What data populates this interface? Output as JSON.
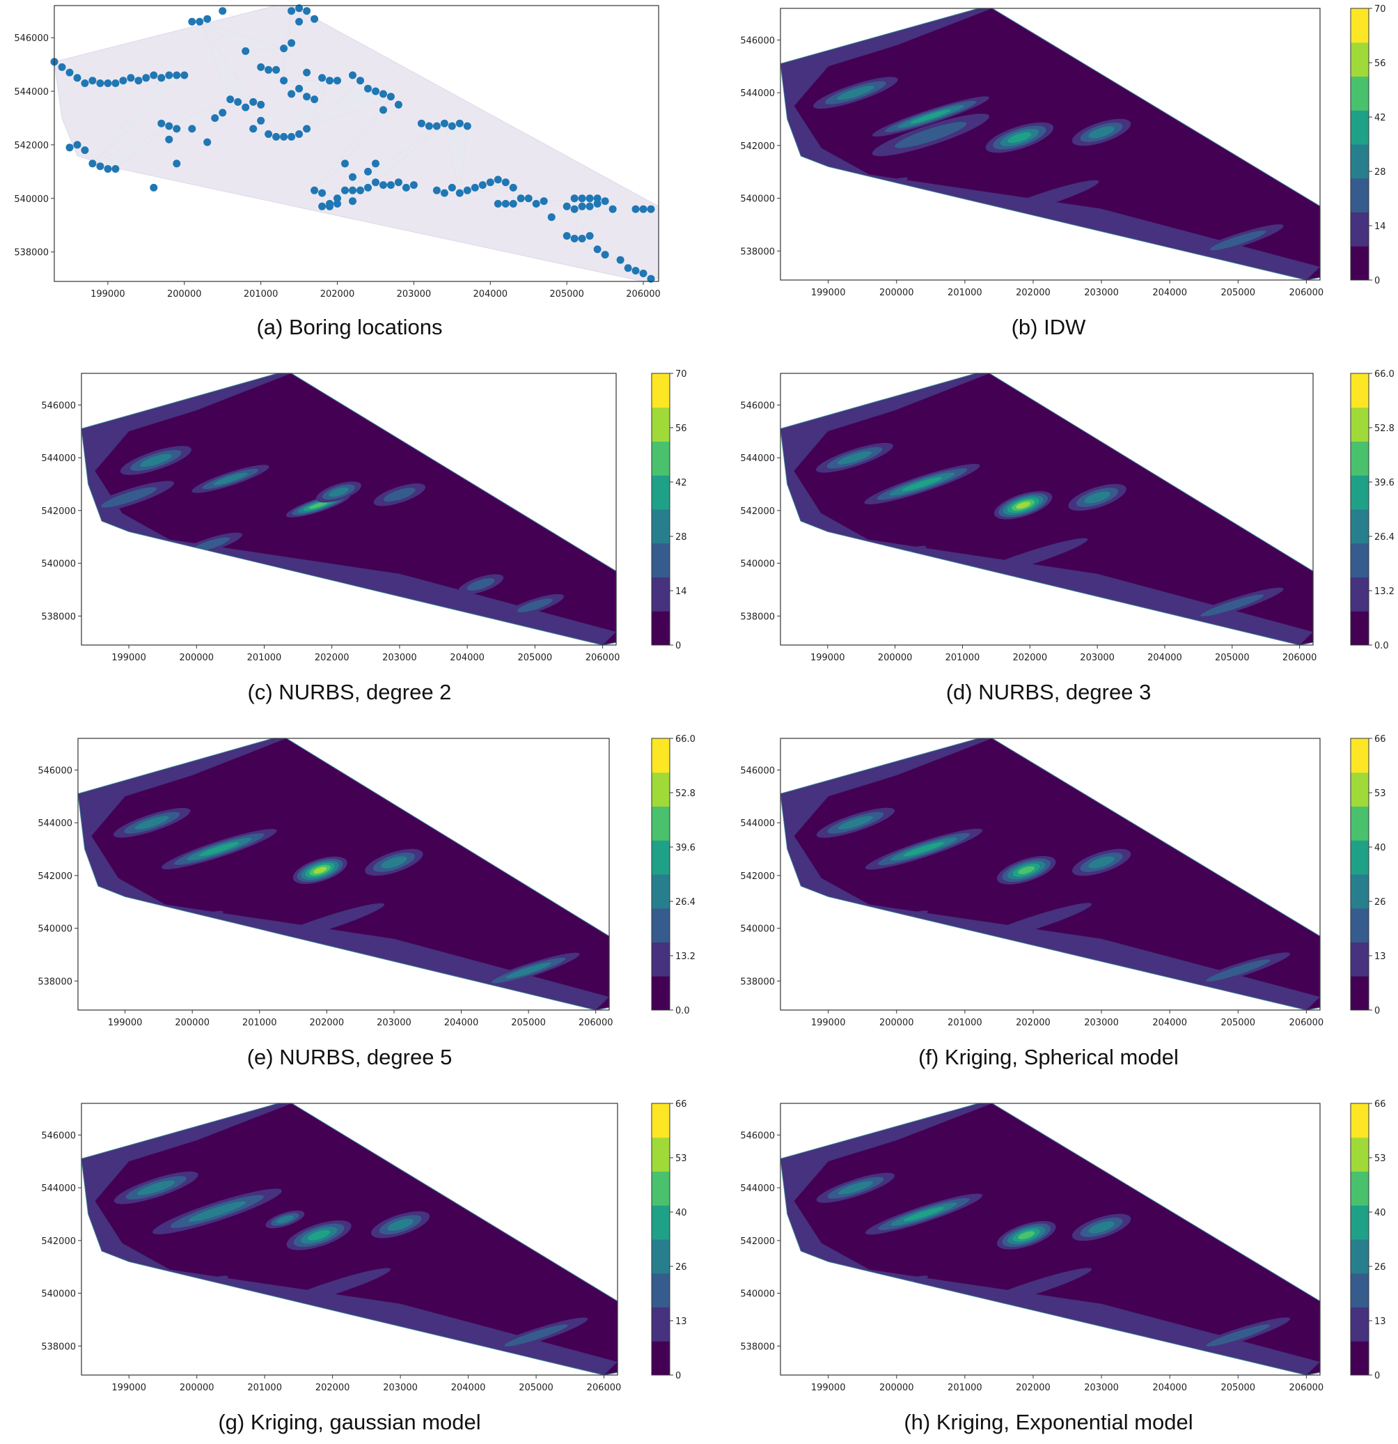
{
  "chart_data": [
    {
      "id": "a",
      "type": "scatter",
      "caption": "(a)  Boring  locations",
      "xlim": [
        198300,
        206200
      ],
      "ylim": [
        536900,
        547200
      ],
      "xticks": [
        "199000",
        "200000",
        "201000",
        "202000",
        "203000",
        "204000",
        "205000",
        "206000"
      ],
      "yticks": [
        "538000",
        "540000",
        "542000",
        "544000",
        "546000"
      ],
      "point_color": "#1f77b4",
      "points": [
        [
          198300,
          545100
        ],
        [
          198400,
          544900
        ],
        [
          198500,
          544700
        ],
        [
          198600,
          544500
        ],
        [
          198700,
          544300
        ],
        [
          198800,
          544400
        ],
        [
          198900,
          544300
        ],
        [
          199000,
          544300
        ],
        [
          199100,
          544300
        ],
        [
          199200,
          544400
        ],
        [
          199300,
          544500
        ],
        [
          199400,
          544400
        ],
        [
          199500,
          544500
        ],
        [
          199600,
          544600
        ],
        [
          199700,
          544500
        ],
        [
          199800,
          544600
        ],
        [
          199900,
          544600
        ],
        [
          200000,
          544600
        ],
        [
          198500,
          541900
        ],
        [
          198600,
          542000
        ],
        [
          198700,
          541800
        ],
        [
          198800,
          541300
        ],
        [
          198900,
          541200
        ],
        [
          199000,
          541100
        ],
        [
          199100,
          541100
        ],
        [
          199600,
          540400
        ],
        [
          199700,
          542800
        ],
        [
          199800,
          542200
        ],
        [
          199800,
          542700
        ],
        [
          199900,
          542600
        ],
        [
          199900,
          541300
        ],
        [
          200100,
          542600
        ],
        [
          200300,
          542100
        ],
        [
          200400,
          543000
        ],
        [
          200500,
          543200
        ],
        [
          200600,
          543700
        ],
        [
          200700,
          543600
        ],
        [
          200800,
          543400
        ],
        [
          200900,
          543600
        ],
        [
          201000,
          543500
        ],
        [
          200900,
          542600
        ],
        [
          200100,
          546600
        ],
        [
          200200,
          546600
        ],
        [
          200300,
          546700
        ],
        [
          200500,
          547000
        ],
        [
          200800,
          545500
        ],
        [
          201000,
          544900
        ],
        [
          201100,
          544800
        ],
        [
          201200,
          544800
        ],
        [
          201300,
          545600
        ],
        [
          201400,
          545800
        ],
        [
          201500,
          546600
        ],
        [
          201400,
          547000
        ],
        [
          201500,
          547100
        ],
        [
          201600,
          547000
        ],
        [
          201700,
          546700
        ],
        [
          201300,
          544400
        ],
        [
          201400,
          543900
        ],
        [
          201500,
          544100
        ],
        [
          201600,
          543800
        ],
        [
          201700,
          543700
        ],
        [
          201600,
          544700
        ],
        [
          201800,
          544500
        ],
        [
          201900,
          544400
        ],
        [
          201000,
          542900
        ],
        [
          201100,
          542400
        ],
        [
          201200,
          542300
        ],
        [
          201300,
          542300
        ],
        [
          201400,
          542300
        ],
        [
          201500,
          542400
        ],
        [
          201600,
          542600
        ],
        [
          202000,
          544400
        ],
        [
          202200,
          544600
        ],
        [
          202300,
          544400
        ],
        [
          202400,
          544100
        ],
        [
          202500,
          544000
        ],
        [
          202600,
          543900
        ],
        [
          202700,
          543800
        ],
        [
          202800,
          543500
        ],
        [
          202600,
          543300
        ],
        [
          202100,
          541300
        ],
        [
          202200,
          540800
        ],
        [
          202400,
          541000
        ],
        [
          202500,
          541300
        ],
        [
          201700,
          540300
        ],
        [
          201800,
          540200
        ],
        [
          201900,
          539800
        ],
        [
          202000,
          540000
        ],
        [
          202100,
          540300
        ],
        [
          202200,
          540300
        ],
        [
          202300,
          540300
        ],
        [
          202400,
          540400
        ],
        [
          202500,
          540600
        ],
        [
          202600,
          540500
        ],
        [
          202700,
          540500
        ],
        [
          202800,
          540600
        ],
        [
          202900,
          540400
        ],
        [
          203000,
          540500
        ],
        [
          201800,
          539700
        ],
        [
          201900,
          539700
        ],
        [
          202000,
          539800
        ],
        [
          202200,
          539900
        ],
        [
          203100,
          542800
        ],
        [
          203200,
          542700
        ],
        [
          203300,
          542700
        ],
        [
          203400,
          542800
        ],
        [
          203500,
          542700
        ],
        [
          203600,
          542800
        ],
        [
          203700,
          542700
        ],
        [
          203300,
          540300
        ],
        [
          203400,
          540200
        ],
        [
          203500,
          540400
        ],
        [
          203600,
          540200
        ],
        [
          203700,
          540300
        ],
        [
          203800,
          540400
        ],
        [
          203900,
          540500
        ],
        [
          204000,
          540600
        ],
        [
          204100,
          540700
        ],
        [
          204200,
          540600
        ],
        [
          204300,
          540400
        ],
        [
          204100,
          539800
        ],
        [
          204200,
          539800
        ],
        [
          204300,
          539800
        ],
        [
          204400,
          540000
        ],
        [
          204500,
          540000
        ],
        [
          204600,
          539800
        ],
        [
          204700,
          539900
        ],
        [
          204800,
          539300
        ],
        [
          205000,
          539700
        ],
        [
          205100,
          539600
        ],
        [
          205200,
          539700
        ],
        [
          205300,
          539700
        ],
        [
          205400,
          539800
        ],
        [
          205500,
          539900
        ],
        [
          205600,
          539600
        ],
        [
          205100,
          540000
        ],
        [
          205200,
          540000
        ],
        [
          205300,
          540000
        ],
        [
          205400,
          540000
        ],
        [
          205000,
          538600
        ],
        [
          205100,
          538500
        ],
        [
          205200,
          538500
        ],
        [
          205300,
          538600
        ],
        [
          205400,
          538100
        ],
        [
          205500,
          537900
        ],
        [
          205700,
          537700
        ],
        [
          205800,
          537400
        ],
        [
          205900,
          537300
        ],
        [
          206000,
          537200
        ],
        [
          206100,
          537000
        ],
        [
          205900,
          539600
        ],
        [
          206000,
          539600
        ],
        [
          206100,
          539600
        ]
      ]
    },
    {
      "id": "b",
      "type": "heatmap",
      "caption": "(b)  IDW",
      "xlim": [
        198300,
        206200
      ],
      "ylim": [
        536900,
        547200
      ],
      "xticks": [
        "199000",
        "200000",
        "201000",
        "202000",
        "203000",
        "204000",
        "205000",
        "206000"
      ],
      "yticks": [
        "538000",
        "540000",
        "542000",
        "544000",
        "546000"
      ],
      "cbar_ticks": [
        "0",
        "14",
        "28",
        "42",
        "56",
        "70"
      ],
      "vmax": 70,
      "hotspots": [
        [
          199400,
          544000,
          0.45,
          650,
          320
        ],
        [
          200500,
          543100,
          0.5,
          900,
          260
        ],
        [
          201800,
          542300,
          0.62,
          520,
          420
        ],
        [
          203000,
          542500,
          0.45,
          450,
          380
        ],
        [
          200500,
          542400,
          0.3,
          900,
          380
        ],
        [
          202200,
          540000,
          0.2,
          800,
          250
        ],
        [
          199500,
          540200,
          0.32,
          700,
          180
        ],
        [
          205000,
          538400,
          0.35,
          700,
          250
        ]
      ]
    },
    {
      "id": "c",
      "type": "heatmap",
      "caption": "(c)  NURBS,  degree  2",
      "xlim": [
        198300,
        206200
      ],
      "ylim": [
        536900,
        547200
      ],
      "xticks": [
        "199000",
        "200000",
        "201000",
        "202000",
        "203000",
        "204000",
        "205000",
        "206000"
      ],
      "yticks": [
        "538000",
        "540000",
        "542000",
        "544000",
        "546000"
      ],
      "cbar_ticks": [
        "0",
        "14",
        "28",
        "42",
        "56",
        "70"
      ],
      "vmax": 70,
      "hotspots": [
        [
          199400,
          543900,
          0.4,
          550,
          350
        ],
        [
          200500,
          543200,
          0.38,
          600,
          250
        ],
        [
          201800,
          542200,
          0.7,
          500,
          250
        ],
        [
          202100,
          542700,
          0.45,
          350,
          300
        ],
        [
          203000,
          542600,
          0.35,
          400,
          300
        ],
        [
          200200,
          540700,
          0.3,
          500,
          250
        ],
        [
          204200,
          539200,
          0.3,
          350,
          280
        ],
        [
          205000,
          538400,
          0.32,
          450,
          250
        ],
        [
          199000,
          542500,
          0.25,
          700,
          300
        ]
      ]
    },
    {
      "id": "d",
      "type": "heatmap",
      "caption": "(d)  NURBS,  degree  3",
      "xlim": [
        198300,
        206200
      ],
      "ylim": [
        536900,
        547200
      ],
      "xticks": [
        "199000",
        "200000",
        "201000",
        "202000",
        "203000",
        "204000",
        "205000",
        "206000"
      ],
      "yticks": [
        "538000",
        "540000",
        "542000",
        "544000",
        "546000"
      ],
      "cbar_ticks": [
        "0.0",
        "13.2",
        "26.4",
        "39.6",
        "52.8",
        "66.0"
      ],
      "vmax": 66,
      "hotspots": [
        [
          199400,
          544000,
          0.45,
          600,
          320
        ],
        [
          200400,
          543000,
          0.6,
          900,
          300
        ],
        [
          201900,
          542200,
          0.82,
          450,
          420
        ],
        [
          203000,
          542500,
          0.45,
          450,
          380
        ],
        [
          199700,
          540000,
          0.38,
          800,
          200
        ],
        [
          202000,
          540200,
          0.2,
          900,
          250
        ],
        [
          205000,
          538400,
          0.35,
          800,
          250
        ]
      ]
    },
    {
      "id": "e",
      "type": "heatmap",
      "caption": "(e)  NURBS,  degree  5",
      "xlim": [
        198300,
        206200
      ],
      "ylim": [
        536900,
        547200
      ],
      "xticks": [
        "199000",
        "200000",
        "201000",
        "202000",
        "203000",
        "204000",
        "205000",
        "206000"
      ],
      "yticks": [
        "538000",
        "540000",
        "542000",
        "544000",
        "546000"
      ],
      "cbar_ticks": [
        "0.0",
        "13.2",
        "26.4",
        "39.6",
        "52.8",
        "66.0"
      ],
      "vmax": 66,
      "hotspots": [
        [
          199400,
          544000,
          0.45,
          600,
          320
        ],
        [
          200400,
          543000,
          0.6,
          900,
          300
        ],
        [
          201900,
          542200,
          0.85,
          420,
          420
        ],
        [
          203000,
          542500,
          0.45,
          450,
          380
        ],
        [
          199700,
          540000,
          0.4,
          800,
          200
        ],
        [
          202000,
          540200,
          0.2,
          900,
          250
        ],
        [
          205000,
          538400,
          0.38,
          800,
          250
        ]
      ]
    },
    {
      "id": "f",
      "type": "heatmap",
      "caption": "(f)  Kriging,  Spherical  model",
      "xlim": [
        198300,
        206200
      ],
      "ylim": [
        536900,
        547200
      ],
      "xticks": [
        "199000",
        "200000",
        "201000",
        "202000",
        "203000",
        "204000",
        "205000",
        "206000"
      ],
      "yticks": [
        "538000",
        "540000",
        "542000",
        "544000",
        "546000"
      ],
      "cbar_ticks": [
        "0",
        "13",
        "26",
        "40",
        "53",
        "66"
      ],
      "vmax": 66,
      "hotspots": [
        [
          199400,
          544000,
          0.45,
          600,
          320
        ],
        [
          200400,
          543000,
          0.55,
          900,
          300
        ],
        [
          201900,
          542200,
          0.68,
          450,
          420
        ],
        [
          203000,
          542500,
          0.45,
          450,
          380
        ],
        [
          199700,
          540000,
          0.38,
          800,
          200
        ],
        [
          202000,
          540200,
          0.2,
          900,
          250
        ],
        [
          205000,
          538400,
          0.35,
          800,
          250
        ]
      ]
    },
    {
      "id": "g",
      "type": "heatmap",
      "caption": "(g)  Kriging,  gaussian  model",
      "xlim": [
        198300,
        206200
      ],
      "ylim": [
        536900,
        547200
      ],
      "xticks": [
        "199000",
        "200000",
        "201000",
        "202000",
        "203000",
        "204000",
        "205000",
        "206000"
      ],
      "yticks": [
        "538000",
        "540000",
        "542000",
        "544000",
        "546000"
      ],
      "cbar_ticks": [
        "0",
        "13",
        "26",
        "40",
        "53",
        "66"
      ],
      "vmax": 66,
      "hotspots": [
        [
          199400,
          544000,
          0.42,
          650,
          350
        ],
        [
          200300,
          543100,
          0.45,
          1000,
          350
        ],
        [
          201800,
          542200,
          0.55,
          500,
          420
        ],
        [
          203000,
          542600,
          0.48,
          450,
          380
        ],
        [
          201300,
          542800,
          0.4,
          300,
          250
        ],
        [
          199700,
          540000,
          0.3,
          800,
          200
        ],
        [
          202000,
          540200,
          0.2,
          900,
          250
        ],
        [
          205000,
          538400,
          0.35,
          800,
          250
        ]
      ]
    },
    {
      "id": "h",
      "type": "heatmap",
      "caption": "(h)  Kriging,  Exponential  model",
      "xlim": [
        198300,
        206200
      ],
      "ylim": [
        536900,
        547200
      ],
      "xticks": [
        "199000",
        "200000",
        "201000",
        "202000",
        "203000",
        "204000",
        "205000",
        "206000"
      ],
      "yticks": [
        "538000",
        "540000",
        "542000",
        "544000",
        "546000"
      ],
      "cbar_ticks": [
        "0",
        "13",
        "26",
        "40",
        "53",
        "66"
      ],
      "vmax": 66,
      "hotspots": [
        [
          199400,
          544000,
          0.45,
          600,
          320
        ],
        [
          200400,
          543000,
          0.55,
          900,
          300
        ],
        [
          201900,
          542200,
          0.68,
          450,
          420
        ],
        [
          203000,
          542500,
          0.45,
          450,
          380
        ],
        [
          199700,
          540000,
          0.38,
          800,
          200
        ],
        [
          202000,
          540200,
          0.2,
          900,
          250
        ],
        [
          205000,
          538400,
          0.35,
          800,
          250
        ]
      ]
    }
  ],
  "boundary": [
    [
      198300,
      545100
    ],
    [
      201200,
      547200
    ],
    [
      201400,
      547200
    ],
    [
      206200,
      539700
    ],
    [
      206200,
      537000
    ],
    [
      206000,
      536900
    ],
    [
      199000,
      541200
    ],
    [
      198600,
      541600
    ],
    [
      198400,
      543000
    ]
  ],
  "colors": {
    "viridis": [
      "#440154",
      "#46327e",
      "#365c8d",
      "#277f8e",
      "#1fa187",
      "#4ac16d",
      "#a0da39",
      "#fde725"
    ],
    "scatter_fill": "#c8bcd8",
    "axis": "#333333"
  }
}
